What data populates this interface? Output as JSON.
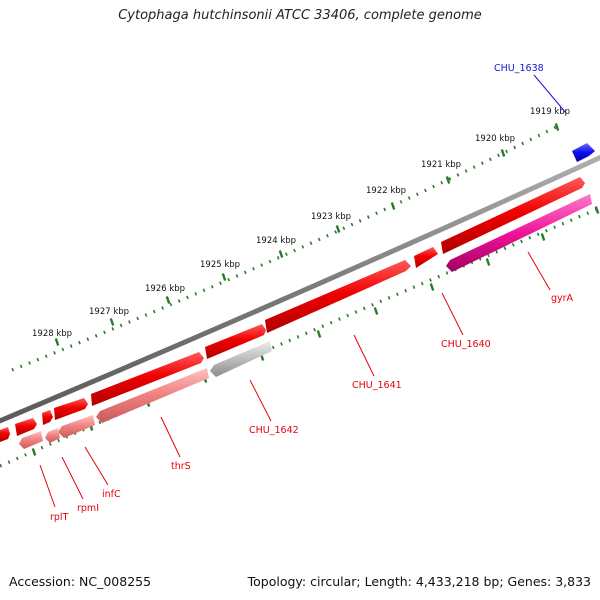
{
  "title": "Cytophaga hutchinsonii ATCC 33406, complete genome",
  "footer": {
    "accession": "Accession: NC_008255",
    "summary": "Topology: circular; Length: 4,433,218 bp; Genes: 3,833"
  },
  "colors": {
    "backbone": "#808080",
    "forward_gene": "#ee0000",
    "reverse_gene": "#f08a8a",
    "reverse_pseudo": "#b9b9b9",
    "gyrA": "#f01a9a",
    "highlight_gene": "#1010ee",
    "ticks": "#2a7a2a",
    "label_red": "#e8000b",
    "label_blue": "#1414d8"
  },
  "ticks": [
    "1919 kbp",
    "1920 kbp",
    "1921 kbp",
    "1922 kbp",
    "1923 kbp",
    "1924 kbp",
    "1925 kbp",
    "1926 kbp",
    "1927 kbp",
    "1928 kbp"
  ],
  "genes": [
    {
      "name": "CHU_1638",
      "color": "blue",
      "labeled": true
    },
    {
      "name": "gyrA",
      "color": "pink",
      "labeled": true
    },
    {
      "name": "CHU_1640",
      "color": "red",
      "labeled": true
    },
    {
      "name": "CHU_1641",
      "color": "red",
      "labeled": true
    },
    {
      "name": "CHU_1642",
      "color": "grey",
      "labeled": true
    },
    {
      "name": "thrS",
      "color": "light-red",
      "labeled": true
    },
    {
      "name": "infC",
      "color": "light-red",
      "labeled": true
    },
    {
      "name": "rpmI",
      "color": "light-red",
      "labeled": true
    },
    {
      "name": "rplT",
      "color": "light-red",
      "labeled": true
    }
  ]
}
